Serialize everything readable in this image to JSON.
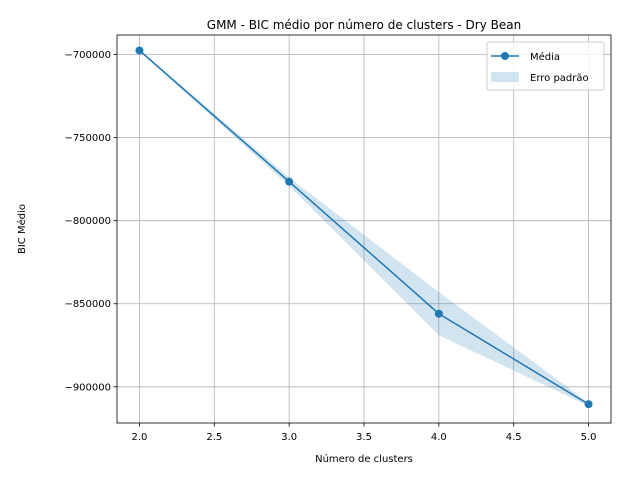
{
  "chart_data": {
    "type": "line",
    "title": "GMM - BIC médio por número de clusters - Dry Bean",
    "xlabel": "Número de clusters",
    "ylabel": "BIC Médio",
    "xlim": [
      1.85,
      5.15
    ],
    "ylim": [
      -921800,
      -688200
    ],
    "xticks": [
      2.0,
      2.5,
      3.0,
      3.5,
      4.0,
      4.5,
      5.0
    ],
    "xtick_labels": [
      "2.0",
      "2.5",
      "3.0",
      "3.5",
      "4.0",
      "4.5",
      "5.0"
    ],
    "yticks": [
      -700000,
      -750000,
      -800000,
      -850000,
      -900000
    ],
    "ytick_labels": [
      "−700000",
      "−750000",
      "−800000",
      "−850000",
      "−900000"
    ],
    "grid": true,
    "legend_position": "top-right",
    "series": [
      {
        "name": "Média",
        "x": [
          2,
          3,
          4,
          5
        ],
        "values": [
          -697500,
          -776500,
          -856000,
          -910500
        ],
        "color": "#1f77b4",
        "marker": "circle"
      }
    ],
    "band": {
      "name": "Erro padrão",
      "x": [
        2,
        3,
        4,
        5
      ],
      "lower": [
        -698200,
        -779000,
        -869000,
        -911500
      ],
      "upper": [
        -697000,
        -774000,
        -843000,
        -909500
      ],
      "color": "#1f77b4",
      "opacity": 0.2
    }
  }
}
